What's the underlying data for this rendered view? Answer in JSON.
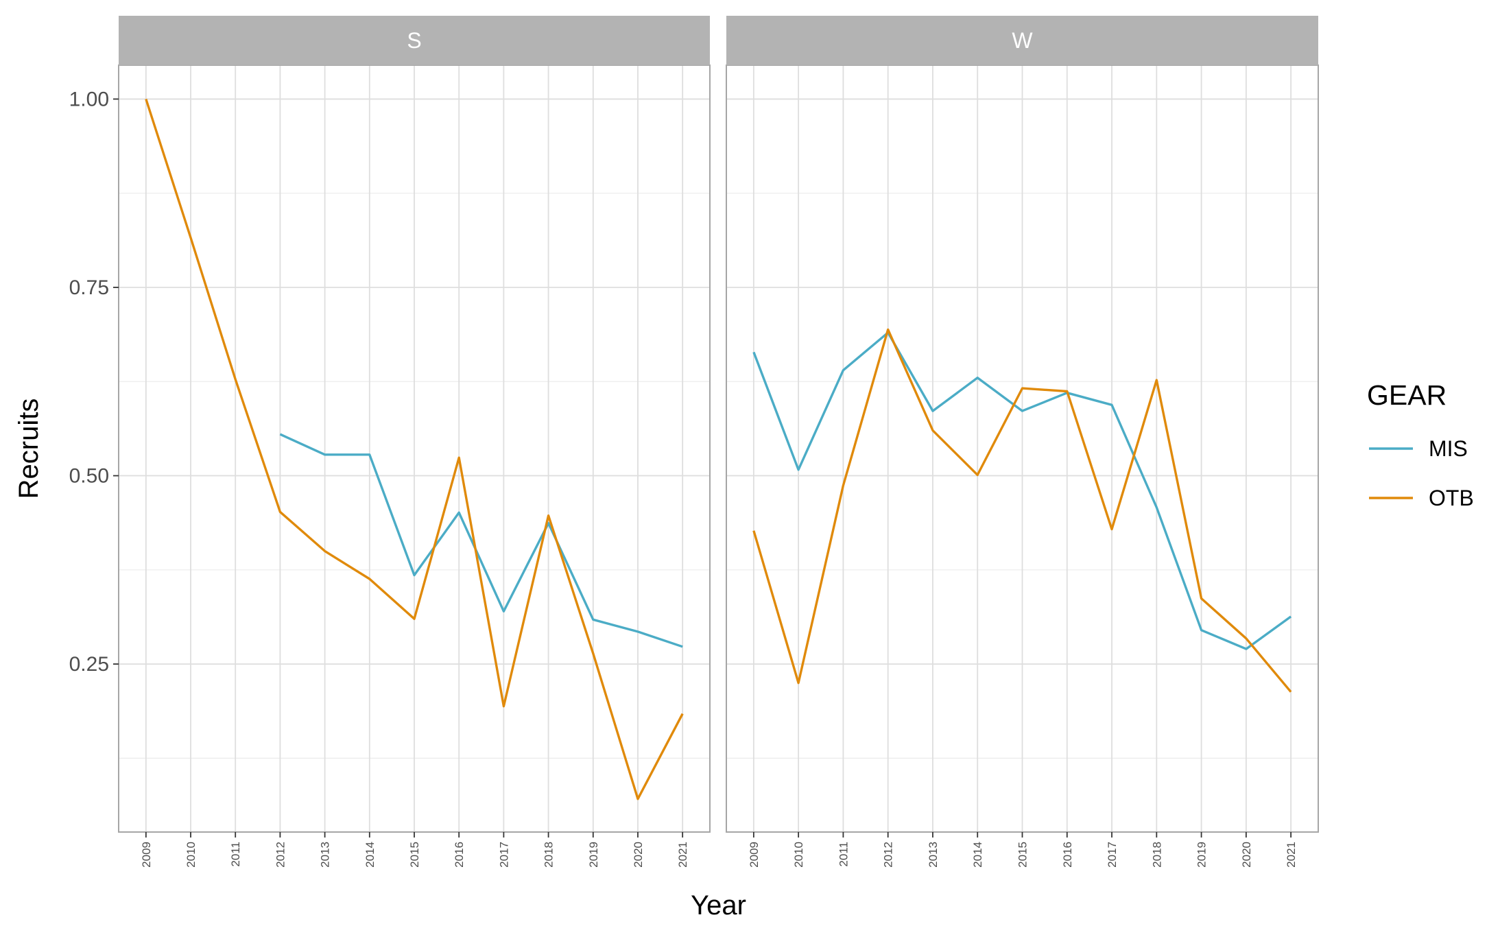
{
  "chart_data": {
    "type": "line",
    "xlabel": "Year",
    "ylabel": "Recruits",
    "x": [
      "2009",
      "2010",
      "2011",
      "2012",
      "2013",
      "2014",
      "2015",
      "2016",
      "2017",
      "2018",
      "2019",
      "2020",
      "2021"
    ],
    "ylim": [
      0.027,
      1.045
    ],
    "yticks": [
      "0.25",
      "0.50",
      "0.75",
      "1.00"
    ],
    "grid": true,
    "legend": {
      "title": "GEAR",
      "position": "right",
      "entries": [
        {
          "name": "MIS",
          "color": "#4BACC6"
        },
        {
          "name": "OTB",
          "color": "#E08A0B"
        }
      ]
    },
    "panels": [
      {
        "strip": "S",
        "series": [
          {
            "name": "MIS",
            "color": "#4BACC6",
            "values": [
              null,
              null,
              null,
              0.555,
              0.528,
              0.528,
              0.368,
              0.451,
              0.32,
              0.437,
              0.309,
              0.293,
              0.273
            ]
          },
          {
            "name": "OTB",
            "color": "#E08A0B",
            "values": [
              1.0,
              0.816,
              0.628,
              0.452,
              0.4,
              0.363,
              0.31,
              0.524,
              0.194,
              0.447,
              0.264,
              0.071,
              0.184
            ]
          }
        ]
      },
      {
        "strip": "W",
        "series": [
          {
            "name": "MIS",
            "color": "#4BACC6",
            "values": [
              0.664,
              0.508,
              0.64,
              0.69,
              0.586,
              0.63,
              0.586,
              0.61,
              0.594,
              0.458,
              0.295,
              0.27,
              0.313
            ]
          },
          {
            "name": "OTB",
            "color": "#E08A0B",
            "values": [
              0.427,
              0.225,
              0.487,
              0.694,
              0.56,
              0.501,
              0.616,
              0.612,
              0.429,
              0.627,
              0.337,
              0.284,
              0.213
            ]
          }
        ]
      }
    ]
  }
}
